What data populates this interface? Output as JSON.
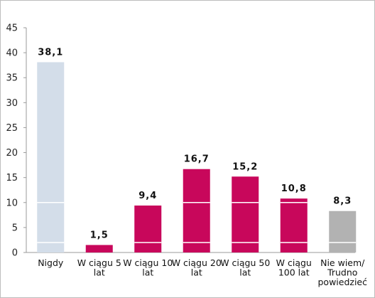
{
  "chart_data": {
    "type": "bar",
    "categories": [
      [
        "Nigdy"
      ],
      [
        "W ciągu 5",
        "lat"
      ],
      [
        "W ciągu 10",
        "lat"
      ],
      [
        "W ciągu 20",
        "lat"
      ],
      [
        "W ciągu 50",
        "lat"
      ],
      [
        "W ciągu",
        "100 lat"
      ],
      [
        "Nie wiem/",
        "Trudno",
        "powiedzieć"
      ]
    ],
    "values": [
      38.1,
      1.5,
      9.4,
      16.7,
      15.2,
      10.8,
      8.3
    ],
    "data_labels": [
      "38,1",
      "1,5",
      "9,4",
      "16,7",
      "15,2",
      "10,8",
      "8,3"
    ],
    "bar_colors": [
      "#d3dde9",
      "#c8075b",
      "#c8075b",
      "#c8075b",
      "#c8075b",
      "#c8075b",
      "#b2b2b2"
    ],
    "ylim": [
      0,
      45
    ],
    "yticks": [
      0,
      5,
      10,
      15,
      20,
      25,
      30,
      35,
      40,
      45
    ],
    "inner_grid_values": [
      2,
      10
    ],
    "grid": false,
    "title": "",
    "xlabel": "",
    "ylabel": ""
  }
}
